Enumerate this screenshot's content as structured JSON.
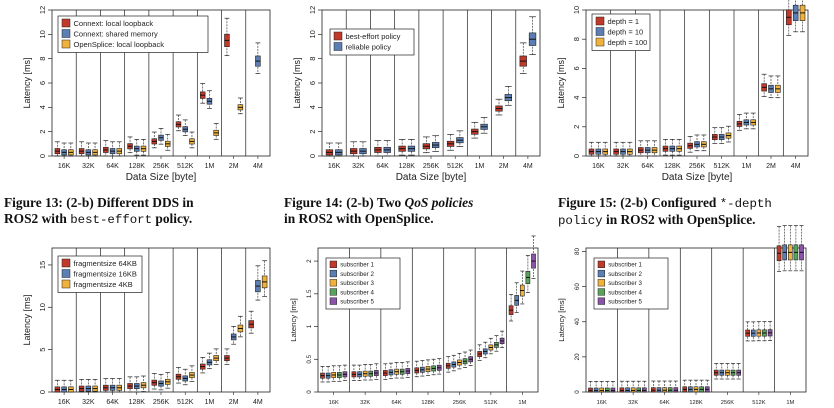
{
  "captions": [
    {
      "figure": "Figure 13:",
      "line1_a": "(2-b) Different DDS in",
      "line2_a": "ROS2 with ",
      "line2_code": "best-effort",
      "line2_b": " policy."
    },
    {
      "figure": "Figure 14:",
      "line1_a": "(2-b) Two ",
      "line1_em": "QoS policies",
      "line2_a": "in ROS2 with OpenSplice."
    },
    {
      "figure": "Figure 15:",
      "line1_a": "(2-b) Configured ",
      "line1_code": "*-depth",
      "line2_code": "policy",
      "line2_a": " in ROS2 with OpenSplice."
    }
  ],
  "chart_data": [
    {
      "type": "box",
      "xlabel": "Data Size [byte]",
      "ylabel": "Latency [ms]",
      "ylim": [
        0,
        12
      ],
      "yticks": [
        0,
        2,
        4,
        6,
        8,
        10,
        12
      ],
      "categories": [
        "16K",
        "32K",
        "64K",
        "128K",
        "256K",
        "512K",
        "1M",
        "2M",
        "4M"
      ],
      "series": [
        {
          "name": "Connext: local loopback",
          "color": "#c0392b",
          "values": [
            0.4,
            0.4,
            0.5,
            0.8,
            1.2,
            2.6,
            5.0,
            9.5,
            null
          ]
        },
        {
          "name": "Connext: shared memory",
          "color": "#5b7fb5",
          "values": [
            0.3,
            0.3,
            0.4,
            0.6,
            1.5,
            2.2,
            4.5,
            null,
            7.8
          ]
        },
        {
          "name": "OpenSplice: local loopback",
          "color": "#f0b23c",
          "values": [
            0.3,
            0.3,
            0.4,
            0.6,
            1.0,
            1.2,
            1.9,
            4.0,
            null
          ]
        }
      ]
    },
    {
      "type": "box",
      "xlabel": "Data Size [byte]",
      "ylabel": "Latency [ms]",
      "ylim": [
        0,
        12
      ],
      "yticks": [
        0,
        2,
        4,
        6,
        8,
        10,
        12
      ],
      "categories": [
        "16K",
        "32K",
        "64K",
        "128K",
        "256K",
        "512K",
        "1M",
        "2M",
        "4M"
      ],
      "series": [
        {
          "name": "best-effort policy",
          "color": "#c0392b",
          "values": [
            0.3,
            0.4,
            0.5,
            0.6,
            0.8,
            1.0,
            2.0,
            3.9,
            7.8
          ]
        },
        {
          "name": "reliable policy",
          "color": "#5b7fb5",
          "values": [
            0.3,
            0.4,
            0.5,
            0.6,
            0.9,
            1.3,
            2.4,
            4.8,
            9.6
          ]
        }
      ]
    },
    {
      "type": "box",
      "xlabel": "Data Size [byte]",
      "ylabel": "Latency [ms]",
      "ylim": [
        0,
        10
      ],
      "yticks": [
        0,
        2,
        4,
        6,
        8,
        10
      ],
      "categories": [
        "16K",
        "32K",
        "64K",
        "128K",
        "256K",
        "512K",
        "1M",
        "2M",
        "4M"
      ],
      "series": [
        {
          "name": "depth = 1",
          "color": "#c0392b",
          "values": [
            0.3,
            0.3,
            0.4,
            0.5,
            0.7,
            1.3,
            2.2,
            4.7,
            9.5
          ]
        },
        {
          "name": "depth = 10",
          "color": "#5b7fb5",
          "values": [
            0.3,
            0.3,
            0.4,
            0.5,
            0.8,
            1.3,
            2.3,
            4.6,
            9.8
          ]
        },
        {
          "name": "depth = 100",
          "color": "#f0b23c",
          "values": [
            0.3,
            0.3,
            0.4,
            0.5,
            0.8,
            1.4,
            2.3,
            4.6,
            9.8
          ]
        }
      ]
    },
    {
      "type": "box",
      "xlabel": "Data Size [byte]",
      "ylabel": "Latency [ms]",
      "ylim": [
        0,
        17
      ],
      "yticks": [
        0,
        5,
        10,
        15
      ],
      "categories": [
        "16K",
        "32K",
        "64K",
        "128K",
        "256K",
        "512K",
        "1M",
        "2M",
        "4M"
      ],
      "series": [
        {
          "name": "fragmentsize 64KB",
          "color": "#c0392b",
          "values": [
            0.3,
            0.4,
            0.5,
            0.7,
            1.1,
            1.8,
            3.0,
            4.0,
            8.0
          ]
        },
        {
          "name": "fragmentsize 16KB",
          "color": "#5b7fb5",
          "values": [
            0.3,
            0.4,
            0.5,
            0.7,
            1.0,
            1.6,
            3.5,
            6.5,
            12.5
          ]
        },
        {
          "name": "fragmentsize 4KB",
          "color": "#f0b23c",
          "values": [
            0.3,
            0.4,
            0.5,
            0.8,
            1.2,
            2.0,
            4.0,
            7.5,
            13.0
          ]
        }
      ]
    },
    {
      "type": "box",
      "xlabel": "Data Size [byte]",
      "ylabel": "Latency [ms]",
      "ylim": [
        0,
        2.2
      ],
      "yticks": [
        0.0,
        0.5,
        1.0,
        1.5,
        2.0
      ],
      "categories": [
        "16K",
        "32K",
        "64K",
        "128K",
        "256K",
        "512K",
        "1M"
      ],
      "series": [
        {
          "name": "subscriber 1",
          "color": "#c0392b",
          "values": [
            0.25,
            0.27,
            0.29,
            0.33,
            0.4,
            0.58,
            1.25
          ]
        },
        {
          "name": "subscriber 2",
          "color": "#5b7fb5",
          "values": [
            0.25,
            0.27,
            0.3,
            0.34,
            0.42,
            0.62,
            1.4
          ]
        },
        {
          "name": "subscriber 3",
          "color": "#f0b23c",
          "values": [
            0.26,
            0.28,
            0.31,
            0.35,
            0.45,
            0.68,
            1.55
          ]
        },
        {
          "name": "subscriber 4",
          "color": "#5aa35a",
          "values": [
            0.26,
            0.28,
            0.31,
            0.36,
            0.47,
            0.72,
            1.75
          ]
        },
        {
          "name": "subscriber 5",
          "color": "#8a55a8",
          "values": [
            0.27,
            0.29,
            0.32,
            0.37,
            0.5,
            0.78,
            2.0
          ]
        }
      ]
    },
    {
      "type": "box",
      "xlabel": "Data Size [byte]",
      "ylabel": "Latency [ms]",
      "ylim": [
        0,
        82
      ],
      "yticks": [
        0,
        20,
        40,
        60,
        80
      ],
      "categories": [
        "16K",
        "32K",
        "64K",
        "128K",
        "256K",
        "512K",
        "1M"
      ],
      "series": [
        {
          "name": "subscriber 1",
          "color": "#c0392b",
          "values": [
            0.8,
            0.9,
            1.0,
            1.5,
            11.0,
            33.5,
            79.0
          ]
        },
        {
          "name": "subscriber 2",
          "color": "#5b7fb5",
          "values": [
            0.8,
            0.9,
            1.0,
            1.5,
            11.0,
            33.5,
            79.5
          ]
        },
        {
          "name": "subscriber 3",
          "color": "#f0b23c",
          "values": [
            0.8,
            0.9,
            1.0,
            1.5,
            11.0,
            33.6,
            79.5
          ]
        },
        {
          "name": "subscriber 4",
          "color": "#5aa35a",
          "values": [
            0.8,
            0.9,
            1.0,
            1.5,
            11.0,
            33.6,
            79.5
          ]
        },
        {
          "name": "subscriber 5",
          "color": "#8a55a8",
          "values": [
            0.8,
            0.9,
            1.0,
            1.5,
            11.0,
            33.7,
            79.5
          ]
        }
      ]
    }
  ]
}
